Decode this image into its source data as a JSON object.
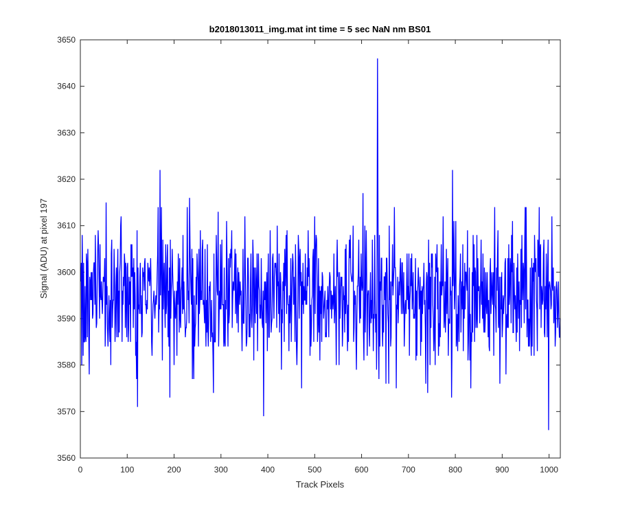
{
  "chart_data": {
    "type": "line",
    "title": "b2018013011_img.mat int time = 5 sec  NaN nm BS01",
    "xlabel": "Track Pixels",
    "ylabel": "Signal (ADU) at pixel 197",
    "xlim": [
      0,
      1024
    ],
    "ylim": [
      3560,
      3650
    ],
    "xticks": [
      0,
      100,
      200,
      300,
      400,
      500,
      600,
      700,
      800,
      900,
      1000
    ],
    "yticks": [
      3560,
      3570,
      3580,
      3590,
      3600,
      3610,
      3620,
      3630,
      3640,
      3650
    ],
    "grid": false,
    "line_color": "#0000ff",
    "series": [
      {
        "x_start": 1,
        "x_step": 1,
        "count": 1024,
        "noise_model": {
          "mean": 3595,
          "std": 7.5,
          "min_clip": 3566,
          "max_clip": 3646
        },
        "key_points": [
          {
            "x": 6,
            "y": 3582
          },
          {
            "x": 19,
            "y": 3578
          },
          {
            "x": 55,
            "y": 3615
          },
          {
            "x": 120,
            "y": 3577
          },
          {
            "x": 122,
            "y": 3571
          },
          {
            "x": 170,
            "y": 3622
          },
          {
            "x": 191,
            "y": 3573
          },
          {
            "x": 233,
            "y": 3616
          },
          {
            "x": 284,
            "y": 3574
          },
          {
            "x": 391,
            "y": 3569
          },
          {
            "x": 472,
            "y": 3575
          },
          {
            "x": 603,
            "y": 3617
          },
          {
            "x": 634,
            "y": 3646
          },
          {
            "x": 637,
            "y": 3577
          },
          {
            "x": 792,
            "y": 3573
          },
          {
            "x": 794,
            "y": 3622
          },
          {
            "x": 999,
            "y": 3566
          }
        ]
      }
    ]
  }
}
